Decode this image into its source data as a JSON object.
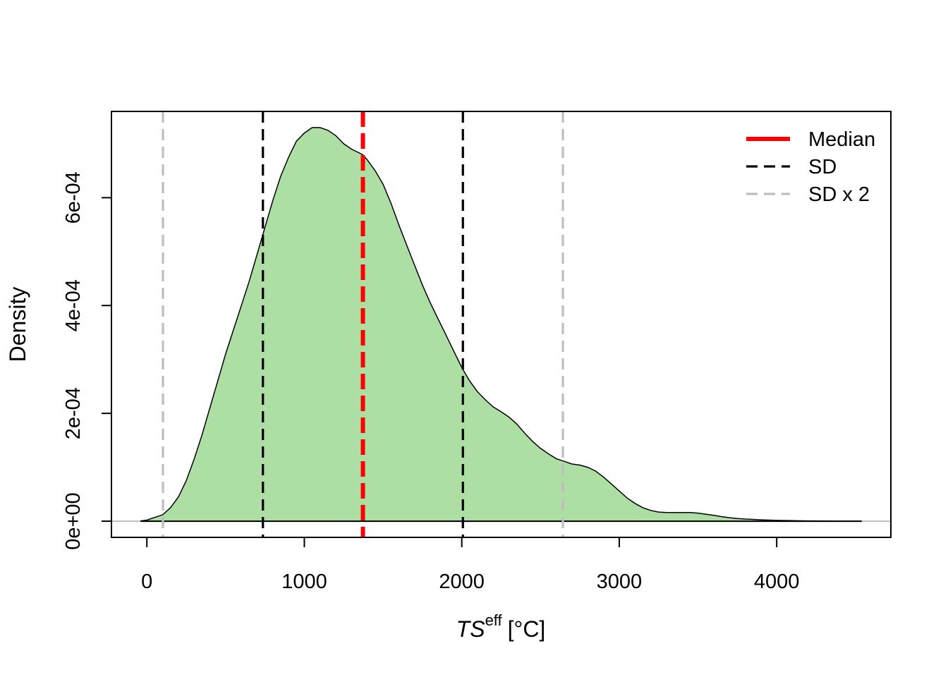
{
  "chart_data": {
    "type": "area",
    "title": "",
    "xlabel": {
      "main": "TS",
      "sup": "eff",
      "unit": "[°C]"
    },
    "ylabel": "Density",
    "xlim": [
      -225,
      4725
    ],
    "ylim": [
      -3e-05,
      0.00076
    ],
    "x_ticks": [
      0,
      1000,
      2000,
      3000,
      4000
    ],
    "x_tick_labels": [
      "0",
      "1000",
      "2000",
      "3000",
      "4000"
    ],
    "y_ticks": [
      0,
      0.0002,
      0.0004,
      0.0006
    ],
    "y_tick_labels": [
      "0e+00",
      "2e-04",
      "4e-04",
      "6e-04"
    ],
    "grid": false,
    "fill_color": "#addfa5",
    "density": {
      "x": [
        -40,
        0,
        100,
        150,
        200,
        250,
        300,
        350,
        400,
        450,
        500,
        550,
        600,
        650,
        700,
        735,
        800,
        850,
        900,
        950,
        1000,
        1050,
        1100,
        1150,
        1200,
        1250,
        1300,
        1370,
        1400,
        1450,
        1500,
        1550,
        1600,
        1650,
        1700,
        1750,
        1800,
        1850,
        1900,
        1950,
        2000,
        2050,
        2100,
        2150,
        2200,
        2250,
        2300,
        2350,
        2400,
        2450,
        2500,
        2550,
        2600,
        2650,
        2700,
        2750,
        2800,
        2850,
        2900,
        2950,
        3000,
        3050,
        3100,
        3150,
        3200,
        3250,
        3300,
        3350,
        3400,
        3450,
        3500,
        3550,
        3600,
        3650,
        3700,
        3750,
        3800,
        3850,
        3900,
        3950,
        4000,
        4100,
        4200,
        4300,
        4400,
        4500,
        4540
      ],
      "y": [
        5e-07,
        2e-06,
        1.2e-05,
        2.5e-05,
        4.5e-05,
        7.5e-05,
        0.000115,
        0.00016,
        0.00021,
        0.00026,
        0.00031,
        0.000355,
        0.0004,
        0.000445,
        0.000495,
        0.00053,
        0.000595,
        0.00064,
        0.000675,
        0.000705,
        0.00072,
        0.00073,
        0.00073,
        0.000725,
        0.000715,
        0.0007,
        0.00069,
        0.00068,
        0.00067,
        0.00065,
        0.000625,
        0.00059,
        0.00055,
        0.000512,
        0.000475,
        0.000438,
        0.000405,
        0.000375,
        0.000345,
        0.000315,
        0.000285,
        0.00026,
        0.00024,
        0.000225,
        0.000212,
        0.000203,
        0.000193,
        0.00018,
        0.000163,
        0.000148,
        0.000135,
        0.000125,
        0.000116,
        0.000111,
        0.000106,
        0.000104,
        0.0001,
        9.3e-05,
        8.2e-05,
        6.9e-05,
        5.6e-05,
        4.3e-05,
        3.3e-05,
        2.5e-05,
        2e-05,
        1.7e-05,
        1.6e-05,
        1.6e-05,
        1.6e-05,
        1.6e-05,
        1.5e-05,
        1.3e-05,
        1.1e-05,
        8.5e-06,
        6.5e-06,
        5e-06,
        4e-06,
        3.3e-06,
        2.6e-06,
        2e-06,
        1.5e-06,
        1e-06,
        6e-07,
        3e-07,
        1e-07,
        5e-08,
        4e-08
      ]
    },
    "vlines": [
      {
        "name": "Median",
        "x": 1372,
        "color": "#ff0000"
      },
      {
        "name": "SD",
        "x": 737,
        "color": "#000000"
      },
      {
        "name": "SD",
        "x": 2007,
        "color": "#000000"
      },
      {
        "name": "SD x 2",
        "x": 102,
        "color": "#bebebe"
      },
      {
        "name": "SD x 2",
        "x": 2642,
        "color": "#bebebe"
      }
    ],
    "baseline_colors": {
      "center": "#000000",
      "edges": "#bebebe"
    },
    "legend": {
      "position": "top-right",
      "entries": [
        {
          "label": "Median",
          "color": "#ff0000"
        },
        {
          "label": "SD",
          "color": "#000000"
        },
        {
          "label": "SD x 2",
          "color": "#bebebe"
        }
      ]
    }
  }
}
